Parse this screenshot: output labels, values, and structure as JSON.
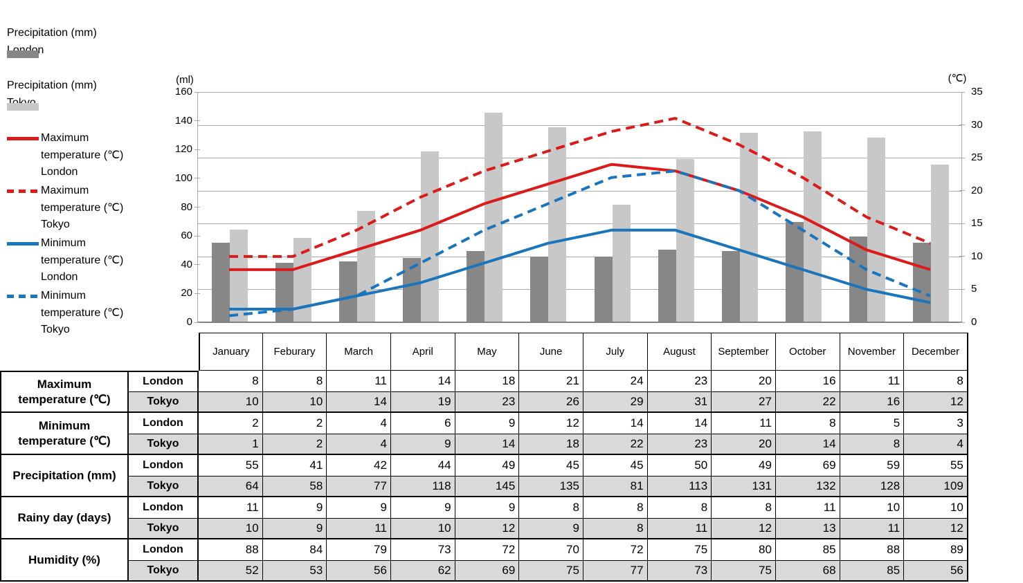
{
  "legend": {
    "items": [
      {
        "name": "precipitation-london",
        "swatch": "bar",
        "color": "#878787",
        "lines": "Precipitation (mm)\nLondon"
      },
      {
        "name": "precipitation-tokyo",
        "swatch": "bar",
        "color": "#c8c8c8",
        "lines": "Precipitation (mm)\nTokyo"
      },
      {
        "name": "max-temp-london",
        "swatch": "line-solid",
        "color": "#dd1a1a",
        "lines": "Maximum\ntemperature (℃)\nLondon"
      },
      {
        "name": "max-temp-tokyo",
        "swatch": "line-dashed",
        "color": "#dd1a1a",
        "lines": "Maximum\ntemperature (℃)\nTokyo"
      },
      {
        "name": "min-temp-london",
        "swatch": "line-solid",
        "color": "#1b75bc",
        "lines": "Minimum\ntemperature (℃)\nLondon"
      },
      {
        "name": "min-temp-tokyo",
        "swatch": "line-dashed",
        "color": "#1b75bc",
        "lines": "Minimum\ntemperature (℃)\nTokyo"
      }
    ]
  },
  "chart_data": {
    "type": "combo-bar-line",
    "categories": [
      "January",
      "Feburary",
      "March",
      "April",
      "May",
      "June",
      "July",
      "August",
      "September",
      "October",
      "November",
      "December"
    ],
    "bar_series": [
      {
        "name": "Precipitation (mm) London",
        "color": "#878787",
        "axis": "left",
        "values": [
          55,
          41,
          42,
          44,
          49,
          45,
          45,
          50,
          49,
          69,
          59,
          55
        ]
      },
      {
        "name": "Precipitation (mm) Tokyo",
        "color": "#c8c8c8",
        "axis": "left",
        "values": [
          64,
          58,
          77,
          118,
          145,
          135,
          81,
          113,
          131,
          132,
          128,
          109
        ]
      }
    ],
    "line_series": [
      {
        "name": "Maximum temperature (℃) London",
        "color": "#dd1a1a",
        "dash": "solid",
        "axis": "right",
        "values": [
          8,
          8,
          11,
          14,
          18,
          21,
          24,
          23,
          20,
          16,
          11,
          8
        ]
      },
      {
        "name": "Maximum temperature (℃) Tokyo",
        "color": "#dd1a1a",
        "dash": "dashed",
        "axis": "right",
        "values": [
          10,
          10,
          14,
          19,
          23,
          26,
          29,
          31,
          27,
          22,
          16,
          12
        ]
      },
      {
        "name": "Minimum temperature (℃) London",
        "color": "#1b75bc",
        "dash": "solid",
        "axis": "right",
        "values": [
          2,
          2,
          4,
          6,
          9,
          12,
          14,
          14,
          11,
          8,
          5,
          3
        ]
      },
      {
        "name": "Minimum temperature (℃) Tokyo",
        "color": "#1b75bc",
        "dash": "dashed",
        "axis": "right",
        "values": [
          1,
          2,
          4,
          9,
          14,
          18,
          22,
          23,
          20,
          14,
          8,
          4
        ]
      }
    ],
    "left_axis": {
      "title": "(ml)",
      "min": 0,
      "max": 160,
      "step": 20,
      "ticks": [
        160,
        140,
        120,
        100,
        80,
        60,
        40,
        20,
        0
      ]
    },
    "right_axis": {
      "title": "(℃)",
      "min": 0,
      "max": 35,
      "step": 5,
      "ticks": [
        35,
        30,
        25,
        20,
        15,
        10,
        5,
        0
      ]
    },
    "grid": "horizontal gridlines every 5 ℃, legend at left"
  },
  "table": {
    "months": [
      "January",
      "Feburary",
      "March",
      "April",
      "May",
      "June",
      "July",
      "August",
      "September",
      "October",
      "November",
      "December"
    ],
    "tokyo_row_bg": "#d9d9d9",
    "groups": [
      {
        "label": "Maximum temperature (℃)",
        "rows": [
          {
            "city": "London",
            "values": [
              8,
              8,
              11,
              14,
              18,
              21,
              24,
              23,
              20,
              16,
              11,
              8
            ]
          },
          {
            "city": "Tokyo",
            "values": [
              10,
              10,
              14,
              19,
              23,
              26,
              29,
              31,
              27,
              22,
              16,
              12
            ]
          }
        ]
      },
      {
        "label": "Minimum temperature (℃)",
        "rows": [
          {
            "city": "London",
            "values": [
              2,
              2,
              4,
              6,
              9,
              12,
              14,
              14,
              11,
              8,
              5,
              3
            ]
          },
          {
            "city": "Tokyo",
            "values": [
              1,
              2,
              4,
              9,
              14,
              18,
              22,
              23,
              20,
              14,
              8,
              4
            ]
          }
        ]
      },
      {
        "label": "Precipitation (mm)",
        "rows": [
          {
            "city": "London",
            "values": [
              55,
              41,
              42,
              44,
              49,
              45,
              45,
              50,
              49,
              69,
              59,
              55
            ]
          },
          {
            "city": "Tokyo",
            "values": [
              64,
              58,
              77,
              118,
              145,
              135,
              81,
              113,
              131,
              132,
              128,
              109
            ]
          }
        ]
      },
      {
        "label": "Rainy day (days)",
        "rows": [
          {
            "city": "London",
            "values": [
              11,
              9,
              9,
              9,
              9,
              8,
              8,
              8,
              8,
              11,
              10,
              10
            ]
          },
          {
            "city": "Tokyo",
            "values": [
              10,
              9,
              11,
              10,
              12,
              9,
              8,
              11,
              12,
              13,
              11,
              12
            ]
          }
        ]
      },
      {
        "label": "Humidity (%)",
        "rows": [
          {
            "city": "London",
            "values": [
              88,
              84,
              79,
              73,
              72,
              70,
              72,
              75,
              80,
              85,
              88,
              89
            ]
          },
          {
            "city": "Tokyo",
            "values": [
              52,
              53,
              56,
              62,
              69,
              75,
              77,
              73,
              75,
              68,
              85,
              56
            ]
          }
        ]
      }
    ]
  }
}
